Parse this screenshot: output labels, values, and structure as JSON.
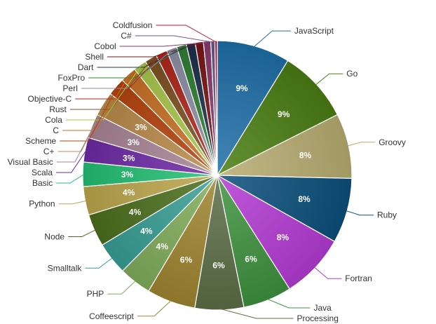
{
  "chart_data": {
    "type": "pie",
    "title": "",
    "show_legend": false,
    "label_threshold_percent": 3,
    "series": [
      {
        "name": "JavaScript",
        "value": 9.0,
        "label": "9%",
        "color": "#1f6fa8"
      },
      {
        "name": "Go",
        "value": 9.0,
        "label": "9%",
        "color": "#4a7d12"
      },
      {
        "name": "Groovy",
        "value": 8.0,
        "label": "8%",
        "color": "#b8ad72"
      },
      {
        "name": "Ruby",
        "value": 8.0,
        "label": "8%",
        "color": "#0b4f7c"
      },
      {
        "name": "Fortran",
        "value": 8.0,
        "label": "8%",
        "color": "#b43bd3"
      },
      {
        "name": "Java",
        "value": 6.0,
        "label": "6%",
        "color": "#3f913f"
      },
      {
        "name": "Processing",
        "value": 6.0,
        "label": "6%",
        "color": "#5c6e47"
      },
      {
        "name": "Coffeescript",
        "value": 6.0,
        "label": "6%",
        "color": "#9f8530"
      },
      {
        "name": "PHP",
        "value": 4.0,
        "label": "4%",
        "color": "#80ad5b"
      },
      {
        "name": "Smalltalk",
        "value": 4.0,
        "label": "4%",
        "color": "#389e95"
      },
      {
        "name": "Node",
        "value": 4.0,
        "label": "4%",
        "color": "#4b6e1c"
      },
      {
        "name": "Python",
        "value": 3.5,
        "label": "4%",
        "color": "#bca64c"
      },
      {
        "name": "Basic",
        "value": 3.0,
        "label": "3%",
        "color": "#23bf73"
      },
      {
        "name": "Scala",
        "value": 3.0,
        "label": "3%",
        "color": "#6e2aa6"
      },
      {
        "name": "Visual Basic",
        "value": 3.0,
        "label": "3%",
        "color": "#a88494"
      },
      {
        "name": "C+",
        "value": 3.0,
        "label": "3%",
        "color": "#b98a4a"
      },
      {
        "name": "Scheme",
        "value": 2.2,
        "label": "",
        "color": "#b5420d"
      },
      {
        "name": "C",
        "value": 2.0,
        "label": "",
        "color": "#c96f23"
      },
      {
        "name": "Cola",
        "value": 1.6,
        "label": "",
        "color": "#a8c64a"
      },
      {
        "name": "Rust",
        "value": 1.5,
        "label": "",
        "color": "#7d5022"
      },
      {
        "name": "Objective-C",
        "value": 1.4,
        "label": "",
        "color": "#b0251a"
      },
      {
        "name": "Perl",
        "value": 1.3,
        "label": "",
        "color": "#8e8ea6"
      },
      {
        "name": "FoxPro",
        "value": 1.2,
        "label": "",
        "color": "#2e7d32"
      },
      {
        "name": "Dart",
        "value": 1.1,
        "label": "",
        "color": "#1e2f4a"
      },
      {
        "name": "Shell",
        "value": 1.0,
        "label": "",
        "color": "#7a1414"
      },
      {
        "name": "Cobol",
        "value": 0.9,
        "label": "",
        "color": "#8a3a6e"
      },
      {
        "name": "C#",
        "value": 0.5,
        "label": "",
        "color": "#6a5a8a"
      },
      {
        "name": "Coldfusion",
        "value": 0.3,
        "label": "",
        "color": "#c8102e"
      }
    ]
  }
}
